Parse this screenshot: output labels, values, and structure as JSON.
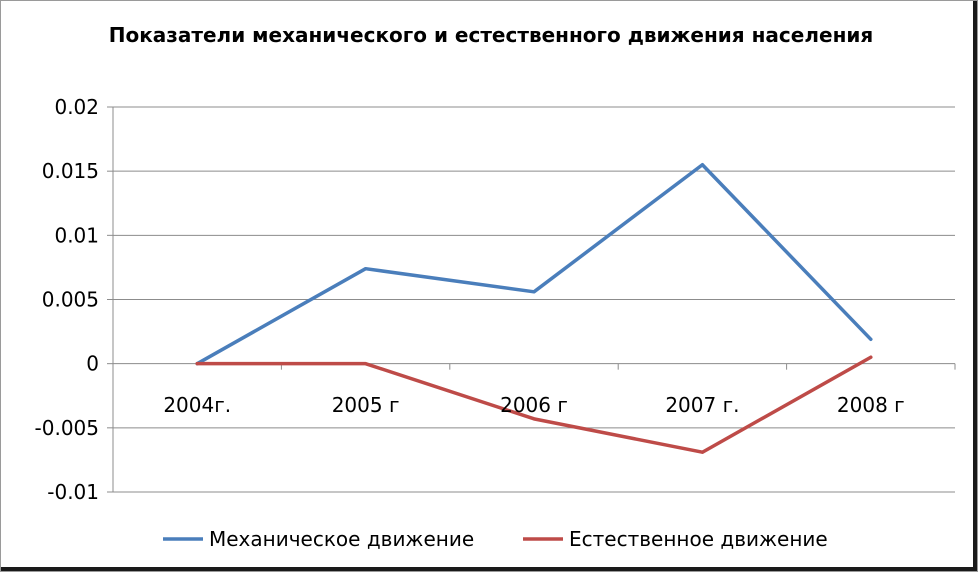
{
  "chart_data": {
    "type": "line",
    "title": "Показатели механического и естественного движения населения",
    "categories": [
      "2004г.",
      "2005 г",
      "2006 г",
      "2007 г.",
      "2008 г"
    ],
    "y_ticks": [
      "0.02",
      "0.015",
      "0.01",
      "0.005",
      "0",
      "-0.005",
      "-0.01"
    ],
    "ylim": [
      -0.01,
      0.02
    ],
    "grid": true,
    "legend_position": "bottom",
    "series": [
      {
        "name": "Механическое движение",
        "color": "#4a7ebb",
        "values": [
          0,
          0.0074,
          0.0056,
          0.0155,
          0.0019
        ]
      },
      {
        "name": "Естественное движение",
        "color": "#be4b48",
        "values": [
          0,
          0,
          -0.0043,
          -0.0069,
          0.0005
        ]
      }
    ]
  }
}
